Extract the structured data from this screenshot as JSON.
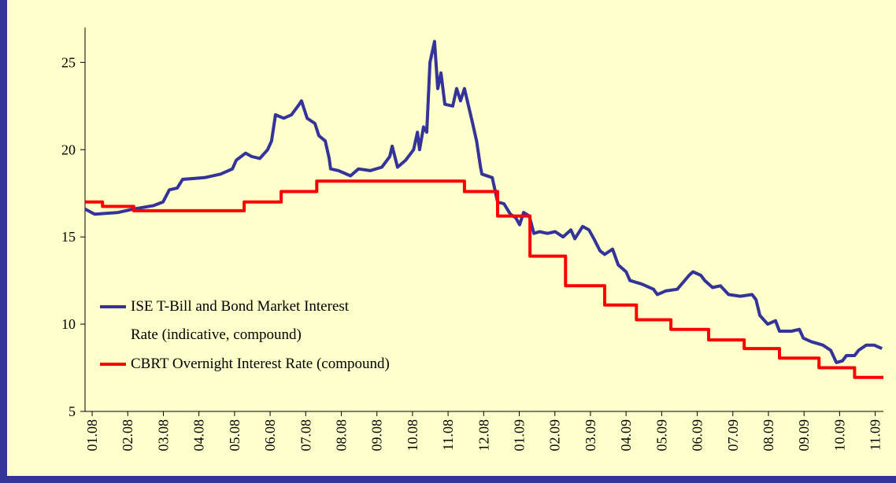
{
  "chart_data": {
    "type": "line",
    "xlim": [
      -0.2,
      22.23
    ],
    "xticks": [
      {
        "value": 0,
        "label": "01.08"
      },
      {
        "value": 1,
        "label": "02.08"
      },
      {
        "value": 2,
        "label": "03.08"
      },
      {
        "value": 3,
        "label": "04.08"
      },
      {
        "value": 4,
        "label": "05.08"
      },
      {
        "value": 5,
        "label": "06.08"
      },
      {
        "value": 6,
        "label": "07.08"
      },
      {
        "value": 7,
        "label": "08.08"
      },
      {
        "value": 8,
        "label": "09.08"
      },
      {
        "value": 9,
        "label": "10.08"
      },
      {
        "value": 10,
        "label": "11.08"
      },
      {
        "value": 11,
        "label": "12.08"
      },
      {
        "value": 12,
        "label": "01.09"
      },
      {
        "value": 13,
        "label": "02.09"
      },
      {
        "value": 14,
        "label": "03.09"
      },
      {
        "value": 15,
        "label": "04.09"
      },
      {
        "value": 16,
        "label": "05.09"
      },
      {
        "value": 17,
        "label": "06.09"
      },
      {
        "value": 18,
        "label": "07.09"
      },
      {
        "value": 19,
        "label": "08.09"
      },
      {
        "value": 20,
        "label": "09.09"
      },
      {
        "value": 21,
        "label": "10.09"
      },
      {
        "value": 22,
        "label": "11.09"
      }
    ],
    "ylim": [
      5,
      27
    ],
    "yticks": [
      5,
      10,
      15,
      20,
      25
    ],
    "legend": "lower left",
    "series": [
      {
        "name": "ISE T-Bill and Bond Market Interest Rate (indicative, compound)",
        "color": "#333399",
        "x": [
          -0.2,
          0.07,
          0.73,
          1.17,
          1.73,
          1.99,
          2.17,
          2.39,
          2.54,
          3.16,
          3.61,
          3.94,
          4.05,
          4.31,
          4.49,
          4.71,
          4.93,
          5.04,
          5.15,
          5.38,
          5.6,
          5.82,
          5.88,
          6.04,
          6.26,
          6.37,
          6.55,
          6.66,
          6.7,
          6.92,
          7.26,
          7.48,
          7.81,
          8.14,
          8.36,
          8.43,
          8.58,
          8.81,
          9.03,
          9.14,
          9.2,
          9.31,
          9.4,
          9.49,
          9.62,
          9.71,
          9.8,
          9.91,
          10.13,
          10.24,
          10.35,
          10.46,
          10.69,
          10.8,
          10.91,
          10.95,
          11.24,
          11.39,
          11.57,
          11.75,
          11.9,
          12.01,
          12.12,
          12.28,
          12.41,
          12.57,
          12.79,
          13.01,
          13.23,
          13.45,
          13.56,
          13.78,
          13.96,
          14.12,
          14.27,
          14.4,
          14.62,
          14.78,
          15.0,
          15.11,
          15.44,
          15.77,
          15.88,
          16.11,
          16.44,
          16.77,
          16.88,
          17.1,
          17.21,
          17.43,
          17.65,
          17.88,
          18.21,
          18.54,
          18.65,
          18.76,
          18.98,
          19.2,
          19.31,
          19.65,
          19.87,
          19.98,
          20.2,
          20.53,
          20.75,
          20.91,
          21.08,
          21.19,
          21.42,
          21.53,
          21.75,
          21.97,
          22.19
        ],
        "values": [
          16.6,
          16.3,
          16.4,
          16.6,
          16.8,
          17.0,
          17.7,
          17.8,
          18.3,
          18.4,
          18.6,
          18.9,
          19.4,
          19.8,
          19.6,
          19.5,
          20.0,
          20.5,
          22.0,
          21.8,
          22.0,
          22.6,
          22.8,
          21.8,
          21.5,
          20.8,
          20.5,
          19.5,
          18.9,
          18.8,
          18.5,
          18.9,
          18.8,
          19.0,
          19.6,
          20.2,
          19.0,
          19.4,
          20.0,
          21.0,
          20.0,
          21.3,
          21.0,
          25.0,
          26.2,
          23.5,
          24.4,
          22.6,
          22.5,
          23.5,
          22.8,
          23.5,
          21.5,
          20.5,
          19.0,
          18.6,
          18.4,
          17.0,
          16.9,
          16.3,
          16.1,
          15.7,
          16.4,
          16.2,
          15.2,
          15.3,
          15.2,
          15.3,
          15.0,
          15.4,
          14.9,
          15.6,
          15.4,
          14.8,
          14.2,
          14.0,
          14.3,
          13.4,
          13.0,
          12.5,
          12.3,
          12.0,
          11.7,
          11.9,
          12.0,
          12.8,
          13.0,
          12.8,
          12.5,
          12.1,
          12.2,
          11.7,
          11.6,
          11.7,
          11.4,
          10.5,
          10.0,
          10.2,
          9.6,
          9.6,
          9.7,
          9.2,
          9.0,
          8.8,
          8.5,
          7.8,
          7.9,
          8.2,
          8.2,
          8.5,
          8.8,
          8.8,
          8.6
        ]
      },
      {
        "name": "CBRT Overnight Interest Rate (compound)",
        "color": "#ff0000",
        "x": [
          -0.2,
          0.29,
          0.29,
          1.17,
          1.17,
          4.27,
          4.27,
          5.31,
          5.31,
          6.31,
          6.31,
          10.46,
          10.46,
          11.39,
          11.39,
          12.3,
          12.3,
          13.3,
          13.3,
          14.4,
          14.4,
          15.29,
          15.29,
          16.26,
          16.26,
          17.32,
          17.32,
          18.32,
          18.32,
          19.31,
          19.31,
          20.42,
          20.42,
          21.42,
          21.42,
          22.23
        ],
        "values": [
          17.0,
          17.0,
          16.75,
          16.75,
          16.5,
          16.5,
          17.0,
          17.0,
          17.6,
          17.6,
          18.2,
          18.2,
          17.6,
          17.6,
          16.2,
          16.2,
          13.9,
          13.9,
          12.2,
          12.2,
          11.1,
          11.1,
          10.25,
          10.25,
          9.7,
          9.7,
          9.1,
          9.1,
          8.6,
          8.6,
          8.05,
          8.05,
          7.5,
          7.5,
          6.95,
          6.95
        ]
      }
    ]
  }
}
